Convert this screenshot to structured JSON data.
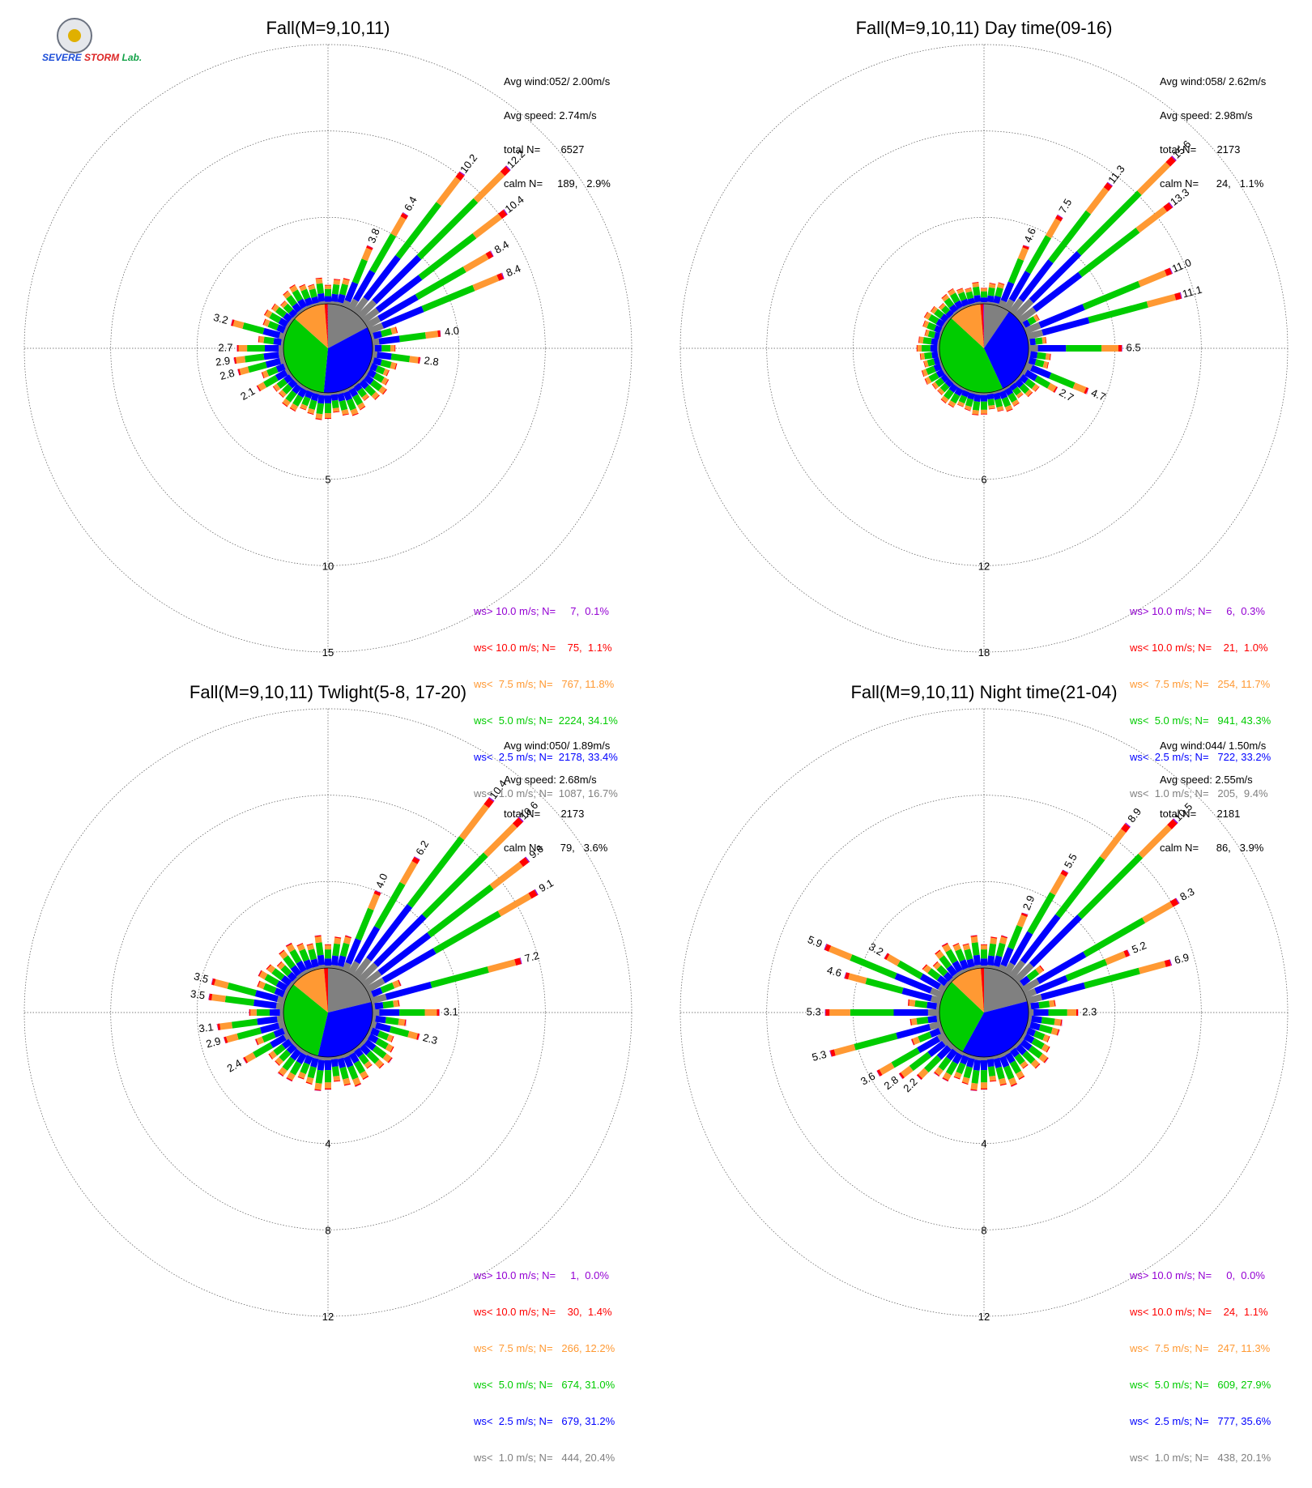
{
  "logo": {
    "text_a": "SEVERE",
    "text_b": "STORM",
    "text_c": "Lab."
  },
  "colors": {
    "gt10": "#9400d3",
    "lt10": "#ff0000",
    "lt75": "#ff9933",
    "lt5": "#00cc00",
    "lt25": "#0000ff",
    "lt1": "#808080"
  },
  "chart_data": [
    {
      "type": "wind-rose",
      "title": "Fall(M=9,10,11)",
      "info": [
        "Avg wind:052/ 2.00m/s",
        "Avg speed: 2.74m/s",
        "total N=       6527",
        "calm N=     189,   2.9%"
      ],
      "legend": [
        "ws> 10.0 m/s; N=     7,  0.1%",
        "ws< 10.0 m/s; N=    75,  1.1%",
        "ws<  7.5 m/s; N=   767, 11.8%",
        "ws<  5.0 m/s; N=  2224, 34.1%",
        "ws<  2.5 m/s; N=  2178, 33.4%",
        "ws<  1.0 m/s; N=  1087, 16.7%"
      ],
      "ring_labels": [
        "5",
        "10",
        "15"
      ],
      "labeled_bars": [
        {
          "dir": 22.5,
          "label": "3.8"
        },
        {
          "dir": 30,
          "label": "6.4"
        },
        {
          "dir": 37.5,
          "label": "10.2"
        },
        {
          "dir": 45,
          "label": "12.2"
        },
        {
          "dir": 52.5,
          "label": "10.4"
        },
        {
          "dir": 60,
          "label": "8.4"
        },
        {
          "dir": 67.5,
          "label": "8.4"
        },
        {
          "dir": 82.5,
          "label": "4.0"
        },
        {
          "dir": 97.5,
          "label": "2.8"
        },
        {
          "dir": 240,
          "label": "2.1"
        },
        {
          "dir": 255,
          "label": "2.8"
        },
        {
          "dir": 262.5,
          "label": "2.9"
        },
        {
          "dir": 270,
          "label": "2.7"
        },
        {
          "dir": 285,
          "label": "3.2"
        }
      ],
      "calm_pct": 2.9,
      "pie": [
        16.7,
        33.4,
        34.1,
        11.8,
        1.1,
        0.1
      ],
      "max": 15
    },
    {
      "type": "wind-rose",
      "title": "Fall(M=9,10,11) Day time(09-16)",
      "info": [
        "Avg wind:058/ 2.62m/s",
        "Avg speed: 2.98m/s",
        "total N=       2173",
        "calm N=      24,   1.1%"
      ],
      "legend": [
        "ws> 10.0 m/s; N=     6,  0.3%",
        "ws< 10.0 m/s; N=    21,  1.0%",
        "ws<  7.5 m/s; N=   254, 11.7%",
        "ws<  5.0 m/s; N=   941, 43.3%",
        "ws<  2.5 m/s; N=   722, 33.2%",
        "ws<  1.0 m/s; N=   205,  9.4%"
      ],
      "ring_labels": [
        "6",
        "12",
        "18"
      ],
      "labeled_bars": [
        {
          "dir": 22.5,
          "label": "4.6"
        },
        {
          "dir": 30,
          "label": "7.5"
        },
        {
          "dir": 37.5,
          "label": "11.3"
        },
        {
          "dir": 45,
          "label": "15.6"
        },
        {
          "dir": 52.5,
          "label": "13.3"
        },
        {
          "dir": 67.5,
          "label": "11.0"
        },
        {
          "dir": 75,
          "label": "11.1"
        },
        {
          "dir": 90,
          "label": "6.5"
        },
        {
          "dir": 112.5,
          "label": "4.7"
        },
        {
          "dir": 120,
          "label": "2.7"
        }
      ],
      "calm_pct": 1.1,
      "pie": [
        9.4,
        33.2,
        43.3,
        11.7,
        1.0,
        0.3
      ],
      "max": 18
    },
    {
      "type": "wind-rose",
      "title": "Fall(M=9,10,11) Twlight(5-8, 17-20)",
      "info": [
        "Avg wind:050/ 1.89m/s",
        "Avg speed: 2.68m/s",
        "total N=       2173",
        "calm N=      79,   3.6%"
      ],
      "legend": [
        "ws> 10.0 m/s; N=     1,  0.0%",
        "ws< 10.0 m/s; N=    30,  1.4%",
        "ws<  7.5 m/s; N=   266, 12.2%",
        "ws<  5.0 m/s; N=   674, 31.0%",
        "ws<  2.5 m/s; N=   679, 31.2%",
        "ws<  1.0 m/s; N=   444, 20.4%"
      ],
      "ring_labels": [
        "4",
        "8",
        "12"
      ],
      "labeled_bars": [
        {
          "dir": 22.5,
          "label": "4.0"
        },
        {
          "dir": 30,
          "label": "6.2"
        },
        {
          "dir": 37.5,
          "label": "10.4"
        },
        {
          "dir": 45,
          "label": "10.6"
        },
        {
          "dir": 52.5,
          "label": "9.6"
        },
        {
          "dir": 60,
          "label": "9.1"
        },
        {
          "dir": 75,
          "label": "7.2"
        },
        {
          "dir": 90,
          "label": "3.1"
        },
        {
          "dir": 105,
          "label": "2.3"
        },
        {
          "dir": 240,
          "label": "2.4"
        },
        {
          "dir": 255,
          "label": "2.9"
        },
        {
          "dir": 262.5,
          "label": "3.1"
        },
        {
          "dir": 277.5,
          "label": "3.5"
        },
        {
          "dir": 285,
          "label": "3.5"
        }
      ],
      "calm_pct": 3.6,
      "pie": [
        20.4,
        31.2,
        31.0,
        12.2,
        1.4,
        0.0
      ],
      "max": 12
    },
    {
      "type": "wind-rose",
      "title": "Fall(M=9,10,11) Night time(21-04)",
      "info": [
        "Avg wind:044/ 1.50m/s",
        "Avg speed: 2.55m/s",
        "total N=       2181",
        "calm N=      86,   3.9%"
      ],
      "legend": [
        "ws> 10.0 m/s; N=     0,  0.0%",
        "ws< 10.0 m/s; N=    24,  1.1%",
        "ws<  7.5 m/s; N=   247, 11.3%",
        "ws<  5.0 m/s; N=   609, 27.9%",
        "ws<  2.5 m/s; N=   777, 35.6%",
        "ws<  1.0 m/s; N=   438, 20.1%"
      ],
      "ring_labels": [
        "4",
        "8",
        "12"
      ],
      "labeled_bars": [
        {
          "dir": 22.5,
          "label": "2.9"
        },
        {
          "dir": 30,
          "label": "5.5"
        },
        {
          "dir": 37.5,
          "label": "8.9"
        },
        {
          "dir": 45,
          "label": "10.5"
        },
        {
          "dir": 60,
          "label": "8.3"
        },
        {
          "dir": 67.5,
          "label": "5.2"
        },
        {
          "dir": 75,
          "label": "6.9"
        },
        {
          "dir": 90,
          "label": "2.3"
        },
        {
          "dir": 225,
          "label": "2.2"
        },
        {
          "dir": 232.5,
          "label": "2.8"
        },
        {
          "dir": 240,
          "label": "3.6"
        },
        {
          "dir": 255,
          "label": "5.3"
        },
        {
          "dir": 270,
          "label": "5.3"
        },
        {
          "dir": 285,
          "label": "4.6"
        },
        {
          "dir": 292.5,
          "label": "5.9"
        },
        {
          "dir": 300,
          "label": "3.2"
        }
      ],
      "calm_pct": 3.9,
      "pie": [
        20.1,
        35.6,
        27.9,
        11.3,
        1.1,
        0.0
      ],
      "max": 12
    }
  ]
}
